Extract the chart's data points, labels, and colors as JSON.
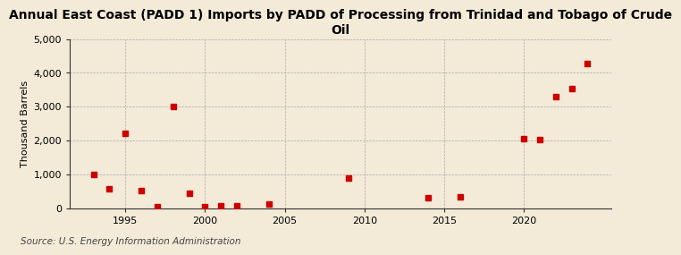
{
  "title": "Annual East Coast (PADD 1) Imports by PADD of Processing from Trinidad and Tobago of Crude\nOil",
  "ylabel": "Thousand Barrels",
  "source": "Source: U.S. Energy Information Administration",
  "background_color": "#f3ead8",
  "plot_bg_color": "#f3ead8",
  "marker_color": "#cc0000",
  "marker_size": 4,
  "years": [
    1993,
    1994,
    1995,
    1996,
    1997,
    1998,
    1999,
    2000,
    2001,
    2002,
    2004,
    2009,
    2014,
    2016,
    2020,
    2021,
    2022,
    2023,
    2024
  ],
  "values": [
    1000,
    575,
    2200,
    525,
    50,
    3000,
    450,
    50,
    75,
    75,
    130,
    880,
    300,
    325,
    2050,
    2025,
    3300,
    3525,
    4275
  ],
  "ylim": [
    0,
    5000
  ],
  "yticks": [
    0,
    1000,
    2000,
    3000,
    4000,
    5000
  ],
  "xlim": [
    1991.5,
    2025.5
  ],
  "xticks": [
    1995,
    2000,
    2005,
    2010,
    2015,
    2020
  ],
  "title_fontsize": 10,
  "axis_fontsize": 8,
  "source_fontsize": 7.5
}
